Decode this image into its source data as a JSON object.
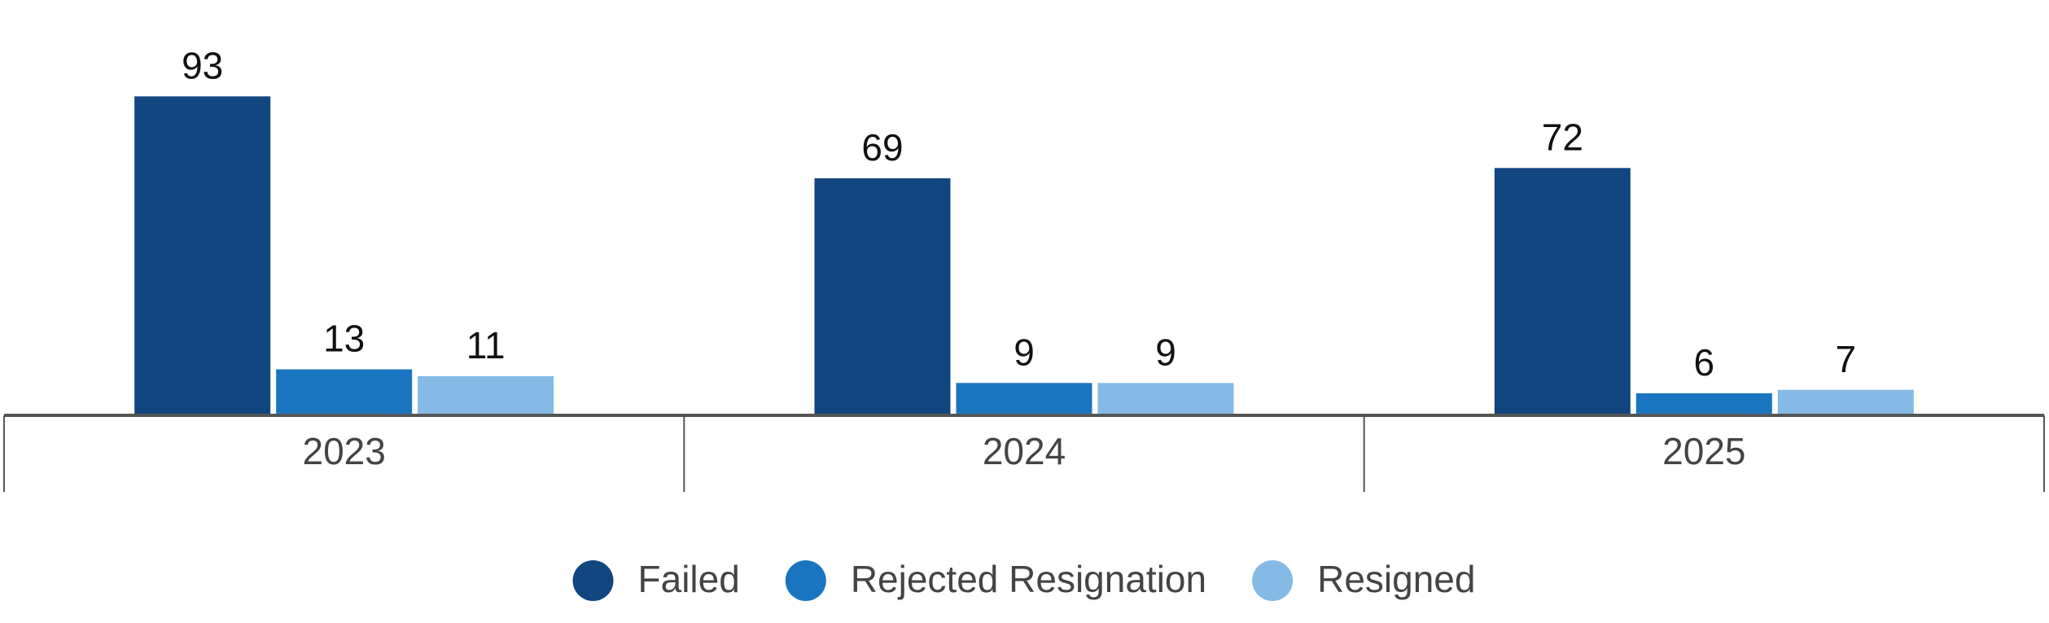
{
  "chart_data": {
    "type": "bar",
    "categories": [
      "2023",
      "2024",
      "2025"
    ],
    "series": [
      {
        "name": "Failed",
        "color": "#12467e",
        "values": [
          93,
          69,
          72
        ]
      },
      {
        "name": "Rejected Resignation",
        "color": "#1a75c0",
        "values": [
          13,
          9,
          6
        ]
      },
      {
        "name": "Resigned",
        "color": "#85bae6",
        "values": [
          11,
          9,
          7
        ]
      }
    ],
    "legend": "bottom"
  }
}
